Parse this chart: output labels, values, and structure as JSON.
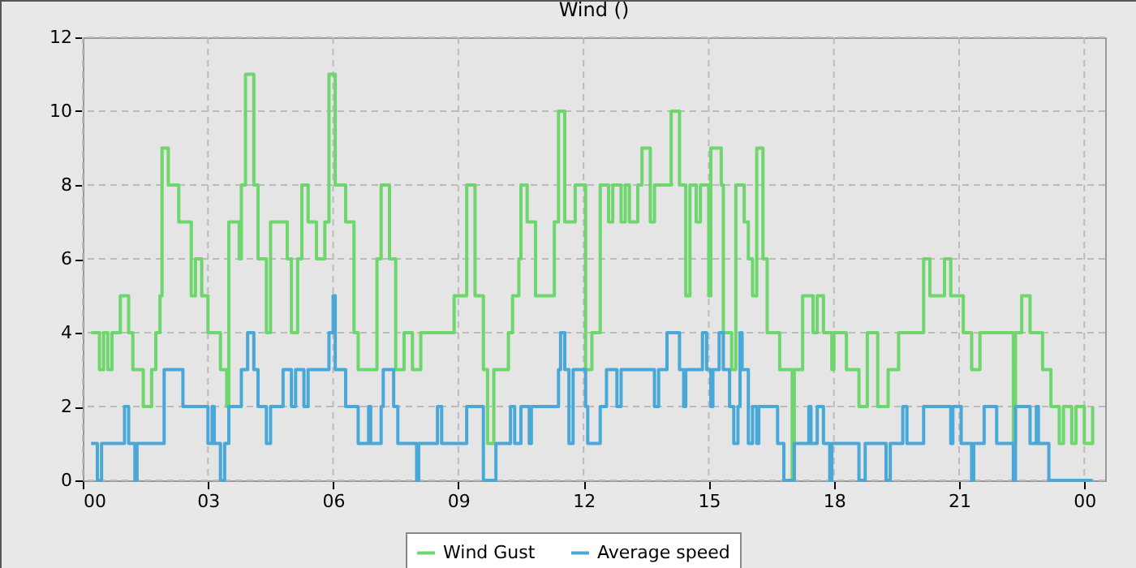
{
  "chart_data": {
    "type": "step",
    "title": "Wind ()",
    "xlim": [
      0,
      24.5
    ],
    "xticks": [
      {
        "value": 0,
        "label": "00"
      },
      {
        "value": 3,
        "label": "03"
      },
      {
        "value": 6,
        "label": "06"
      },
      {
        "value": 9,
        "label": "09"
      },
      {
        "value": 12,
        "label": "12"
      },
      {
        "value": 15,
        "label": "15"
      },
      {
        "value": 18,
        "label": "18"
      },
      {
        "value": 21,
        "label": "21"
      },
      {
        "value": 24,
        "label": "00"
      }
    ],
    "ylim": [
      0,
      12
    ],
    "yticks": [
      0,
      2,
      4,
      6,
      8,
      10,
      12
    ],
    "grid": true,
    "legend": "bottom",
    "series": [
      {
        "name": "Wind Gust",
        "color": "#6dd66d",
        "x": [
          0.2,
          0.4,
          0.5,
          0.6,
          0.7,
          0.9,
          1.1,
          1.2,
          1.45,
          1.65,
          1.75,
          1.85,
          1.9,
          2.05,
          2.3,
          2.6,
          2.7,
          2.85,
          3.0,
          3.3,
          3.45,
          3.5,
          3.75,
          3.8,
          3.9,
          4.1,
          4.2,
          4.4,
          4.5,
          4.9,
          5.0,
          5.15,
          5.25,
          5.4,
          5.6,
          5.8,
          5.9,
          6.05,
          6.3,
          6.5,
          6.6,
          7.05,
          7.15,
          7.35,
          7.5,
          7.7,
          7.9,
          8.1,
          8.9,
          9.2,
          9.4,
          9.6,
          9.7,
          9.85,
          10.2,
          10.3,
          10.45,
          10.5,
          10.65,
          10.85,
          11.3,
          11.4,
          11.55,
          11.8,
          12.05,
          12.2,
          12.4,
          12.6,
          12.7,
          12.9,
          13.0,
          13.1,
          13.3,
          13.4,
          13.6,
          13.7,
          14.1,
          14.3,
          14.45,
          14.55,
          14.7,
          14.8,
          15.0,
          15.05,
          15.3,
          15.35,
          15.55,
          15.65,
          15.85,
          15.95,
          16.05,
          16.15,
          16.3,
          16.4,
          16.7,
          17.0,
          17.05,
          17.25,
          17.5,
          17.6,
          17.75,
          17.95,
          18.0,
          18.3,
          18.6,
          18.8,
          19.05,
          19.3,
          19.55,
          20.15,
          20.3,
          20.65,
          20.8,
          21.1,
          21.3,
          21.5,
          22.3,
          22.35,
          22.5,
          22.7,
          23.0,
          23.2,
          23.4,
          23.5,
          23.7,
          23.8,
          24.0,
          24.2
        ],
        "values": [
          4,
          3,
          4,
          3,
          4,
          5,
          4,
          3,
          2,
          3,
          4,
          5,
          9,
          8,
          7,
          5,
          6,
          5,
          4,
          3,
          2,
          7,
          6,
          8,
          11,
          8,
          6,
          4,
          7,
          6,
          4,
          6,
          8,
          7,
          6,
          7,
          11,
          8,
          7,
          4,
          3,
          6,
          8,
          6,
          3,
          4,
          3,
          4,
          5,
          8,
          5,
          3,
          1,
          3,
          4,
          5,
          6,
          8,
          7,
          5,
          7,
          10,
          7,
          8,
          3,
          4,
          8,
          7,
          8,
          7,
          8,
          7,
          8,
          9,
          7,
          8,
          10,
          8,
          5,
          8,
          7,
          8,
          5,
          9,
          8,
          4,
          3,
          8,
          7,
          6,
          5,
          9,
          6,
          4,
          3,
          0,
          3,
          5,
          4,
          5,
          4,
          3,
          4,
          3,
          2,
          4,
          2,
          3,
          4,
          6,
          5,
          6,
          5,
          4,
          3,
          4,
          1,
          4,
          5,
          4,
          3,
          2,
          1,
          2,
          1,
          2,
          1,
          2
        ]
      },
      {
        "name": "Average speed",
        "color": "#4aa8d8",
        "x": [
          0.2,
          0.35,
          0.45,
          1.0,
          1.1,
          1.25,
          1.3,
          1.95,
          2.4,
          3.0,
          3.1,
          3.15,
          3.3,
          3.4,
          3.5,
          3.8,
          3.95,
          4.1,
          4.2,
          4.4,
          4.5,
          4.8,
          5.0,
          5.1,
          5.3,
          5.4,
          5.9,
          6.0,
          6.05,
          6.3,
          6.6,
          6.85,
          6.9,
          7.15,
          7.2,
          7.45,
          7.55,
          8.0,
          8.05,
          8.5,
          8.6,
          9.2,
          9.6,
          9.9,
          10.25,
          10.35,
          10.5,
          10.7,
          10.75,
          11.4,
          11.45,
          11.55,
          11.65,
          11.75,
          12.05,
          12.1,
          12.4,
          12.55,
          12.8,
          12.9,
          13.7,
          13.8,
          14.0,
          14.3,
          14.4,
          14.45,
          14.85,
          14.95,
          15.05,
          15.1,
          15.25,
          15.35,
          15.5,
          15.6,
          15.7,
          15.75,
          15.8,
          15.95,
          16.05,
          16.15,
          16.2,
          16.65,
          16.8,
          17.05,
          17.4,
          17.45,
          17.6,
          17.75,
          17.9,
          17.95,
          18.6,
          18.75,
          19.25,
          19.35,
          19.65,
          19.75,
          20.15,
          20.8,
          20.85,
          21.05,
          21.3,
          21.35,
          21.6,
          21.9,
          22.3,
          22.35,
          22.7,
          22.85,
          22.9,
          23.15,
          24.2
        ],
        "values": [
          1,
          0,
          1,
          2,
          1,
          0,
          1,
          3,
          2,
          1,
          2,
          1,
          0,
          1,
          2,
          3,
          4,
          3,
          2,
          1,
          2,
          3,
          2,
          3,
          2,
          3,
          4,
          5,
          3,
          2,
          1,
          2,
          1,
          2,
          3,
          2,
          1,
          0,
          1,
          2,
          1,
          2,
          0,
          1,
          2,
          1,
          2,
          1,
          2,
          3,
          4,
          3,
          1,
          3,
          2,
          1,
          2,
          3,
          2,
          3,
          2,
          3,
          4,
          3,
          2,
          3,
          4,
          3,
          2,
          3,
          4,
          3,
          2,
          1,
          2,
          4,
          3,
          1,
          2,
          1,
          2,
          1,
          0,
          1,
          2,
          1,
          2,
          1,
          0,
          1,
          0,
          1,
          0,
          1,
          2,
          1,
          2,
          1,
          2,
          1,
          0,
          1,
          2,
          1,
          0,
          2,
          1,
          2,
          1,
          0,
          0
        ]
      }
    ]
  }
}
